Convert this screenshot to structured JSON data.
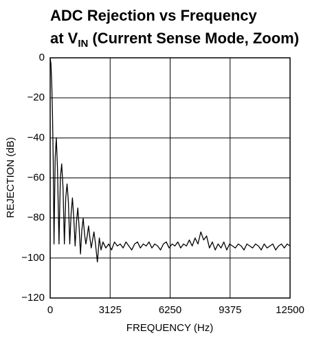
{
  "chart_data": {
    "type": "line",
    "title": {
      "line1": "ADC Rejection vs Frequency",
      "line2_prefix": "at V",
      "line2_subscript": "IN",
      "line2_suffix": "(Current Sense Mode, Zoom)"
    },
    "xlabel": "FREQUENCY (Hz)",
    "ylabel": "REJECTION (dB)",
    "xlim": [
      0,
      12500
    ],
    "xticks": [
      0,
      3125,
      6250,
      9375,
      12500
    ],
    "ylim": [
      -120,
      0
    ],
    "yticks": [
      {
        "value": -120,
        "label": "−120"
      },
      {
        "value": -100,
        "label": "−100"
      },
      {
        "value": -80,
        "label": "−80"
      },
      {
        "value": -60,
        "label": "−60"
      },
      {
        "value": -40,
        "label": "−40"
      },
      {
        "value": -20,
        "label": "−20"
      },
      0
    ],
    "grid": true,
    "series": [
      {
        "color": "#000000",
        "x": [
          0,
          40,
          80,
          120,
          160,
          200,
          260,
          320,
          380,
          460,
          530,
          600,
          670,
          740,
          810,
          880,
          950,
          1020,
          1090,
          1160,
          1230,
          1300,
          1370,
          1440,
          1510,
          1580,
          1650,
          1720,
          1790,
          1860,
          1930,
          2000,
          2070,
          2140,
          2210,
          2280,
          2350,
          2460,
          2560,
          2650,
          2750,
          2900,
          3050,
          3200,
          3350,
          3500,
          3650,
          3800,
          3950,
          4100,
          4250,
          4400,
          4550,
          4700,
          4850,
          5000,
          5150,
          5300,
          5450,
          5600,
          5750,
          5900,
          6050,
          6200,
          6350,
          6500,
          6650,
          6800,
          6950,
          7100,
          7250,
          7400,
          7550,
          7700,
          7850,
          8000,
          8150,
          8300,
          8450,
          8600,
          8750,
          8900,
          9050,
          9200,
          9350,
          9500,
          9650,
          9800,
          9950,
          10100,
          10250,
          10400,
          10550,
          10700,
          10850,
          11000,
          11150,
          11300,
          11450,
          11600,
          11750,
          11900,
          12050,
          12200,
          12350,
          12500
        ],
        "values": [
          0,
          -3,
          -12,
          -28,
          -52,
          -93,
          -50,
          -40,
          -55,
          -93,
          -60,
          -53,
          -65,
          -93,
          -70,
          -63,
          -72,
          -93,
          -78,
          -70,
          -80,
          -94,
          -82,
          -75,
          -85,
          -98,
          -86,
          -80,
          -88,
          -93,
          -89,
          -84,
          -90,
          -95,
          -91,
          -87,
          -92,
          -102,
          -90,
          -96,
          -92,
          -95,
          -93,
          -96,
          -92,
          -94,
          -93,
          -95,
          -92,
          -94,
          -96,
          -93,
          -92,
          -95,
          -93,
          -94,
          -92,
          -95,
          -93,
          -94,
          -96,
          -93,
          -92,
          -95,
          -93,
          -94,
          -92,
          -95,
          -93,
          -94,
          -91,
          -94,
          -90,
          -93,
          -87,
          -91,
          -89,
          -95,
          -92,
          -96,
          -93,
          -95,
          -92,
          -96,
          -93,
          -94,
          -95,
          -93,
          -94,
          -96,
          -93,
          -94,
          -95,
          -93,
          -94,
          -96,
          -93,
          -95,
          -94,
          -93,
          -96,
          -94,
          -93,
          -95,
          -93,
          -94
        ]
      }
    ]
  }
}
